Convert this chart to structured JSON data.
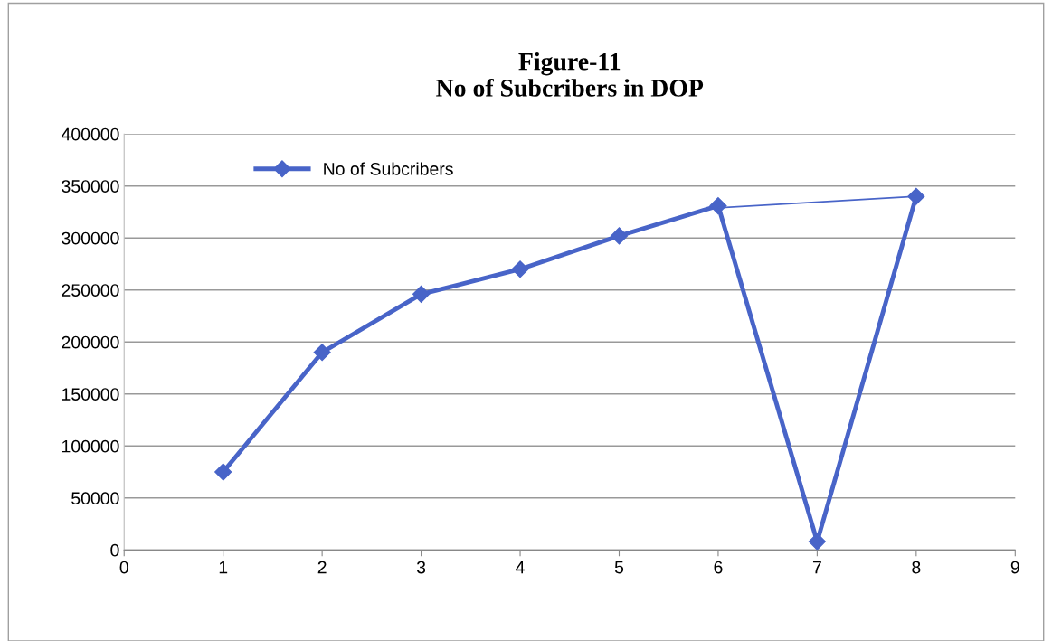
{
  "chart_data": {
    "type": "line",
    "title": "Figure-11\nNo of Subcribers in DOP",
    "x": [
      1,
      2,
      3,
      4,
      5,
      6,
      7,
      8
    ],
    "series": [
      {
        "name": "No of Subcribers",
        "color": "#4864c8",
        "marker": "diamond",
        "values": [
          75000,
          190000,
          246000,
          270000,
          302000,
          331000,
          8000,
          340000
        ]
      },
      {
        "color": "#4864c8",
        "marker": "none",
        "x": [
          6,
          8
        ],
        "values": [
          329000,
          340000
        ]
      }
    ],
    "xlim": [
      0,
      9
    ],
    "xticks": [
      0,
      1,
      2,
      3,
      4,
      5,
      6,
      7,
      8,
      9
    ],
    "ylim": [
      0,
      400000
    ],
    "yticks": [
      0,
      50000,
      100000,
      150000,
      200000,
      250000,
      300000,
      350000,
      400000
    ],
    "grid": "y",
    "legend": "top left",
    "line_style": "solid"
  }
}
